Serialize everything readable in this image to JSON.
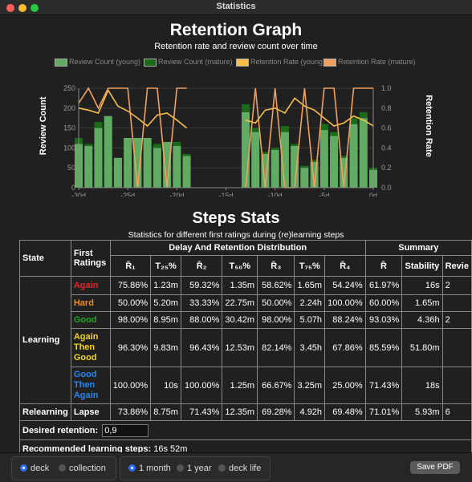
{
  "window": {
    "title": "Statistics"
  },
  "retention": {
    "title": "Retention Graph",
    "subtitle": "Retention rate and review count over time",
    "legend": [
      "Review Count (young)",
      "Review Count (mature)",
      "Retention Rate (young)",
      "Retention Rate (mature)"
    ]
  },
  "chart_data": {
    "type": "bar",
    "title": "Retention Graph",
    "subtitle": "Retention rate and review count over time",
    "xlabel": "",
    "ylabel": "Review Count",
    "y2label": "Retention Rate",
    "xlim": [
      -30,
      0
    ],
    "ylim": [
      0,
      250
    ],
    "y2lim": [
      0,
      1.0
    ],
    "x_ticks": [
      "-30d",
      "-25d",
      "-20d",
      "-15d",
      "-10d",
      "-5d",
      "0d"
    ],
    "y_ticks": [
      "0",
      "50",
      "100",
      "150",
      "200",
      "250"
    ],
    "y2_ticks": [
      "0.0",
      "0.2",
      "0.4",
      "0.6",
      "0.8",
      "1.0"
    ],
    "x": [
      -30,
      -29,
      -28,
      -27,
      -26,
      -25,
      -24,
      -23,
      -22,
      -21,
      -20,
      -19,
      -18,
      -17,
      -16,
      -15,
      -14,
      -13,
      -12,
      -11,
      -10,
      -9,
      -8,
      -7,
      -6,
      -5,
      -4,
      -3,
      -2,
      -1,
      0
    ],
    "series": [
      {
        "name": "Review Count (young)",
        "color": "#62ab62",
        "values": [
          110,
          105,
          150,
          180,
          75,
          125,
          125,
          125,
          100,
          115,
          105,
          80,
          0,
          0,
          0,
          0,
          0,
          190,
          140,
          85,
          95,
          140,
          105,
          50,
          65,
          145,
          130,
          75,
          160,
          175,
          45
        ]
      },
      {
        "name": "Review Count (mature)",
        "color": "#1a6a1a",
        "values": [
          15,
          5,
          15,
          0,
          0,
          0,
          0,
          0,
          10,
          0,
          10,
          5,
          0,
          0,
          0,
          0,
          0,
          20,
          10,
          5,
          5,
          15,
          5,
          5,
          5,
          15,
          10,
          5,
          15,
          15,
          5
        ]
      },
      {
        "name": "Retention Rate (young)",
        "color": "#f8c04a",
        "values": [
          0.8,
          0.78,
          0.75,
          0.98,
          0.82,
          0.77,
          0.7,
          0.62,
          0.73,
          0.75,
          0.68,
          0.6,
          null,
          null,
          null,
          null,
          null,
          0.68,
          0.65,
          0.78,
          0.8,
          0.75,
          0.9,
          0.82,
          0.78,
          0.7,
          0.62,
          0.65,
          0.72,
          0.68,
          0.62
        ]
      },
      {
        "name": "Retention Rate (mature)",
        "color": "#f0a060",
        "values": [
          0.85,
          1.0,
          0.8,
          1.0,
          1.0,
          1.0,
          0.0,
          1.0,
          1.0,
          0.0,
          1.0,
          1.0,
          null,
          null,
          null,
          null,
          null,
          0.0,
          1.0,
          0.0,
          1.0,
          0.0,
          0.0,
          1.0,
          0.0,
          1.0,
          1.0,
          0.0,
          1.0,
          1.0,
          1.0
        ]
      }
    ]
  },
  "steps": {
    "title": "Steps Stats",
    "subtitle": "Statistics for different first ratings during (re)learning steps",
    "headers": {
      "state": "State",
      "first_ratings": "First Ratings",
      "dist": "Delay And Retention Distribution",
      "summary": "Summary",
      "r1": "R̄₁",
      "t25": "T₂₅%",
      "r2": "R̄₂",
      "t50": "T₅₀%",
      "r3": "R̄₃",
      "t75": "T₇₅%",
      "r4": "R̄₄",
      "rbar": "R̄",
      "stability": "Stability",
      "review": "Revie"
    },
    "rows": [
      {
        "state": "Learning",
        "rating": "Again",
        "rating_color": "#e52626",
        "r1": "75.86%",
        "t25": "1.23m",
        "r2": "59.32%",
        "t50": "1.35m",
        "r3": "58.62%",
        "t75": "1.65m",
        "r4": "54.24%",
        "rbar": "61.97%",
        "stability": "16s",
        "review": "2"
      },
      {
        "state": "",
        "rating": "Hard",
        "rating_color": "#f28c1c",
        "r1": "50.00%",
        "t25": "5.20m",
        "r2": "33.33%",
        "t50": "22.75m",
        "r3": "50.00%",
        "t75": "2.24h",
        "r4": "100.00%",
        "rbar": "60.00%",
        "stability": "1.65m",
        "review": ""
      },
      {
        "state": "",
        "rating": "Good",
        "rating_color": "#22a822",
        "r1": "98.00%",
        "t25": "8.95m",
        "r2": "88.00%",
        "t50": "30.42m",
        "r3": "98.00%",
        "t75": "5.07h",
        "r4": "88.24%",
        "rbar": "93.03%",
        "stability": "4.36h",
        "review": "2"
      },
      {
        "state": "",
        "rating": "Again Then Good",
        "rating_color": "#f2d21c",
        "r1": "96.30%",
        "t25": "9.83m",
        "r2": "96.43%",
        "t50": "12.53m",
        "r3": "82.14%",
        "t75": "3.45h",
        "r4": "67.86%",
        "rbar": "85.59%",
        "stability": "51.80m",
        "review": ""
      },
      {
        "state": "",
        "rating": "Good Then Again",
        "rating_color": "#2a84f0",
        "r1": "100.00%",
        "t25": "10s",
        "r2": "100.00%",
        "t50": "1.25m",
        "r3": "66.67%",
        "t75": "3.25m",
        "r4": "25.00%",
        "rbar": "71.43%",
        "stability": "18s",
        "review": ""
      },
      {
        "state": "Relearning",
        "rating": "Lapse",
        "rating_color": "#ffffff",
        "r1": "73.86%",
        "t25": "8.75m",
        "r2": "71.43%",
        "t50": "12.35m",
        "r3": "69.28%",
        "t75": "4.92h",
        "r4": "69.48%",
        "rbar": "71.01%",
        "stability": "5.93m",
        "review": "6"
      }
    ],
    "desired_label": "Desired retention:",
    "desired_value": "0,9",
    "recommended_label": "Recommended learning steps:",
    "recommended_value": "16s 52m"
  },
  "bottom": {
    "scope_options": [
      "deck",
      "collection"
    ],
    "scope_selected": "deck",
    "range_options": [
      "1 month",
      "1 year",
      "deck life"
    ],
    "range_selected": "1 month",
    "save_pdf": "Save PDF"
  }
}
